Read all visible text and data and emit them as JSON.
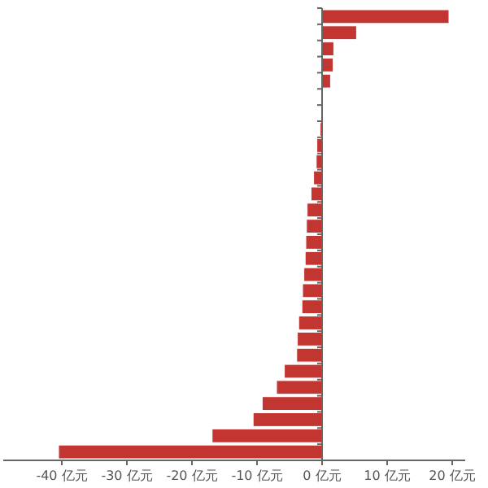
{
  "chart_data": {
    "type": "bar",
    "orientation": "horizontal",
    "categories": [
      null,
      null,
      null,
      null,
      null,
      null,
      null,
      null,
      null,
      null,
      null,
      null,
      null,
      null,
      null,
      null,
      null,
      null,
      null,
      null,
      null,
      null,
      null,
      null,
      null,
      null,
      null,
      null
    ],
    "values": [
      19.5,
      5.3,
      1.8,
      1.7,
      1.3,
      0,
      0,
      -0.3,
      -0.8,
      -0.9,
      -1.3,
      -1.7,
      -2.3,
      -2.4,
      -2.5,
      -2.6,
      -2.8,
      -3.0,
      -3.1,
      -3.6,
      -3.8,
      -3.9,
      -5.8,
      -7.0,
      -9.2,
      -10.6,
      -16.9,
      -40.5
    ],
    "color": "#c23531",
    "xlim": [
      -49,
      22
    ],
    "xticks": [
      {
        "value": -40,
        "label": "-40 亿元"
      },
      {
        "value": -30,
        "label": "-30 亿元"
      },
      {
        "value": -20,
        "label": "-20 亿元"
      },
      {
        "value": -10,
        "label": "-10 亿元"
      },
      {
        "value": 0,
        "label": "0 亿元"
      },
      {
        "value": 10,
        "label": "10 亿元"
      },
      {
        "value": 20,
        "label": "20 亿元"
      }
    ]
  }
}
